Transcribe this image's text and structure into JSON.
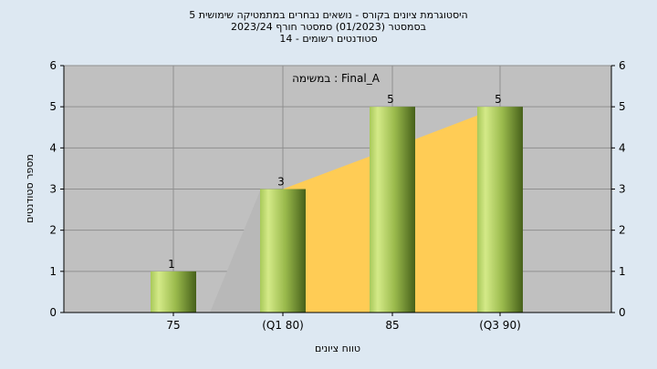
{
  "title": {
    "line1": "היסטוגרמת ציונים בקורס - נושאים נבחרים במתמטיקה שימושית 5",
    "line2": "בסמסטר  (01/2023)  סמסטר חורף  2023/24",
    "line3": "סטודנטים רשומים - 14"
  },
  "annotation": "במשימה : Final_A",
  "colors": {
    "plot_bg": "#c0c0c0",
    "area_fill": "#ffcc55",
    "area_gray": "#b8b8b8",
    "bar_light": "#c8e07a",
    "bar_dark": "#4d6a1e"
  },
  "chart_data": {
    "type": "bar",
    "categories": [
      "75",
      "(Q1 80)",
      "85",
      "(Q3 90)"
    ],
    "values": [
      1,
      3,
      5,
      5
    ],
    "xlabel": "טווח ציונים",
    "ylabel": "מספר סטודנטים",
    "ylim": [
      0,
      6
    ],
    "yticks": [
      0,
      1,
      2,
      3,
      4,
      5,
      6
    ],
    "grid": "vertical",
    "secondary_y_axis": true,
    "area_values": [
      0,
      3,
      4,
      5
    ]
  }
}
